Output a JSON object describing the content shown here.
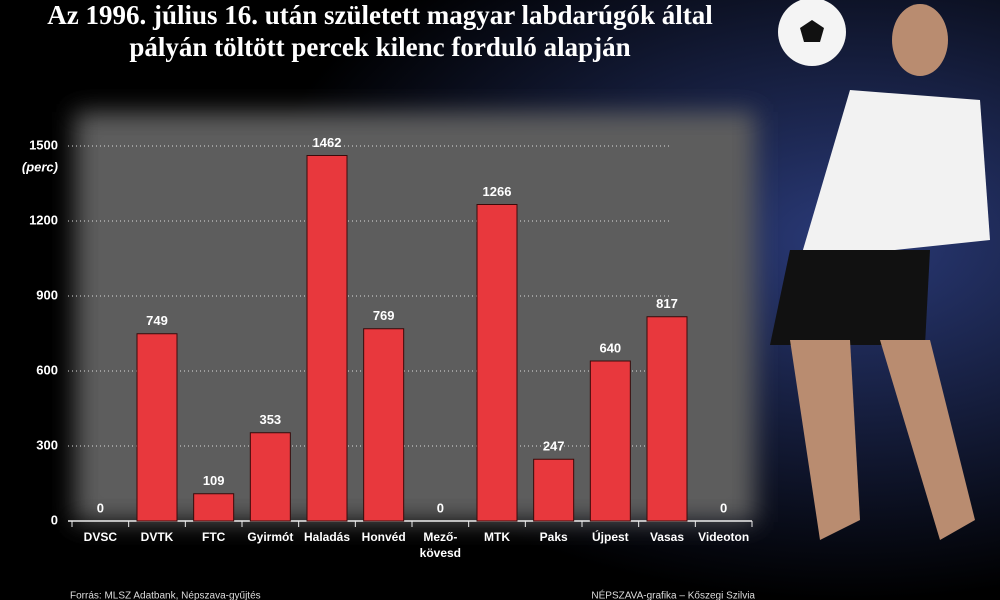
{
  "chart_data": {
    "type": "bar",
    "title": "Az 1996. július 16. után született magyar labdarúgók által\npályán töltött percek kilenc forduló alapján",
    "y_label": "(perc)",
    "categories": [
      "DVSC",
      "DVTK",
      "FTC",
      "Gyirmót",
      "Haladás",
      "Honvéd",
      "Mező-\nkövesd",
      "MTK",
      "Paks",
      "Újpest",
      "Vasas",
      "Videoton"
    ],
    "values": [
      0,
      749,
      109,
      353,
      1462,
      769,
      0,
      1266,
      247,
      640,
      817,
      0
    ],
    "color": "#e8383d",
    "ylim": [
      0,
      1500
    ],
    "yticks": [
      0,
      300,
      600,
      900,
      1200,
      1500
    ],
    "grid": true,
    "source": "Forrás: MLSZ Adatbank, Népszava-gyűjtés",
    "credit": "NÉPSZAVA-grafika – Kőszegi Szilvia"
  }
}
